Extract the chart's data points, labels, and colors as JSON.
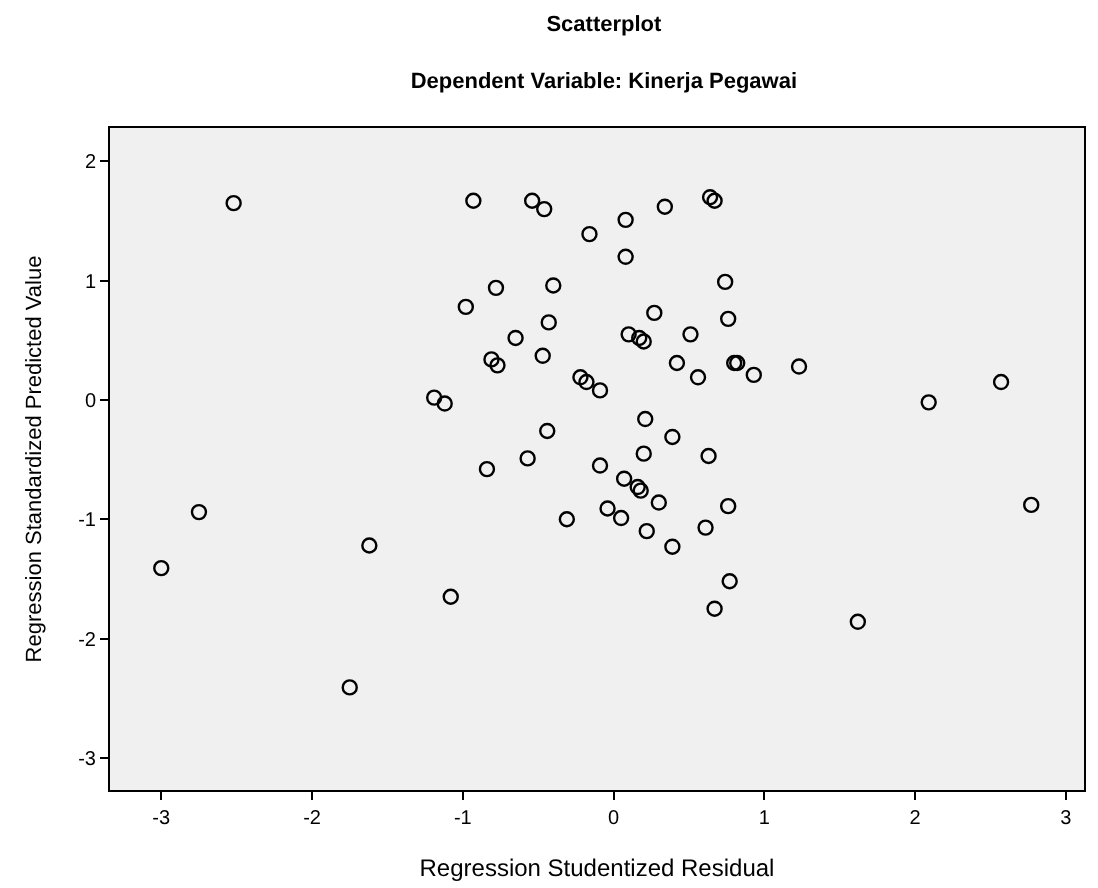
{
  "chart_data": {
    "type": "scatter",
    "title": "Scatterplot",
    "subtitle": "Dependent Variable: Kinerja Pegawai",
    "xlabel": "Regression Studentized Residual",
    "ylabel": "Regression Standardized Predicted Value",
    "x": [
      -2.52,
      -0.93,
      -0.54,
      -0.46,
      -0.78,
      -0.4,
      -0.98,
      -0.43,
      -0.65,
      -0.81,
      -0.77,
      -0.47,
      -1.19,
      -1.12,
      -0.44,
      -0.57,
      -0.84,
      -0.16,
      0.08,
      0.34,
      0.64,
      0.67,
      0.08,
      0.74,
      0.76,
      0.27,
      0.1,
      0.17,
      0.2,
      0.51,
      0.42,
      0.56,
      0.8,
      0.82,
      0.93,
      1.23,
      -0.22,
      -0.18,
      -0.09,
      2.09,
      2.57,
      0.21,
      0.39,
      0.2,
      0.63,
      -0.09,
      0.07,
      0.16,
      0.18,
      0.3,
      0.76,
      -0.31,
      -0.04,
      0.05,
      0.22,
      0.39,
      0.61,
      0.77,
      0.67,
      1.62,
      2.77,
      -3.0,
      -2.75,
      -1.62,
      -1.08,
      -1.75
    ],
    "series": [
      {
        "color": "#000000",
        "values": [
          1.65,
          1.67,
          1.67,
          1.6,
          0.94,
          0.96,
          0.78,
          0.65,
          0.52,
          0.34,
          0.29,
          0.37,
          0.02,
          -0.03,
          -0.26,
          -0.49,
          -0.58,
          1.39,
          1.51,
          1.62,
          1.7,
          1.67,
          1.2,
          0.99,
          0.68,
          0.73,
          0.55,
          0.52,
          0.49,
          0.55,
          0.31,
          0.19,
          0.31,
          0.31,
          0.21,
          0.28,
          0.19,
          0.15,
          0.08,
          -0.02,
          0.15,
          -0.16,
          -0.31,
          -0.45,
          -0.47,
          -0.55,
          -0.66,
          -0.73,
          -0.76,
          -0.86,
          -0.89,
          -1.0,
          -0.91,
          -0.99,
          -1.1,
          -1.23,
          -1.07,
          -1.52,
          -1.75,
          -1.86,
          -0.88,
          -1.41,
          -0.94,
          -1.22,
          -1.65,
          -2.41
        ]
      }
    ],
    "xlim": [
      -3.34,
      3.12
    ],
    "xticks": [
      -3,
      -2,
      -1,
      0,
      1,
      2,
      3
    ],
    "ylim": [
      -3.27,
      2.28
    ],
    "yticks": [
      -3,
      -2,
      -1,
      0,
      1,
      2
    ],
    "marker": "circle",
    "grid": false
  }
}
